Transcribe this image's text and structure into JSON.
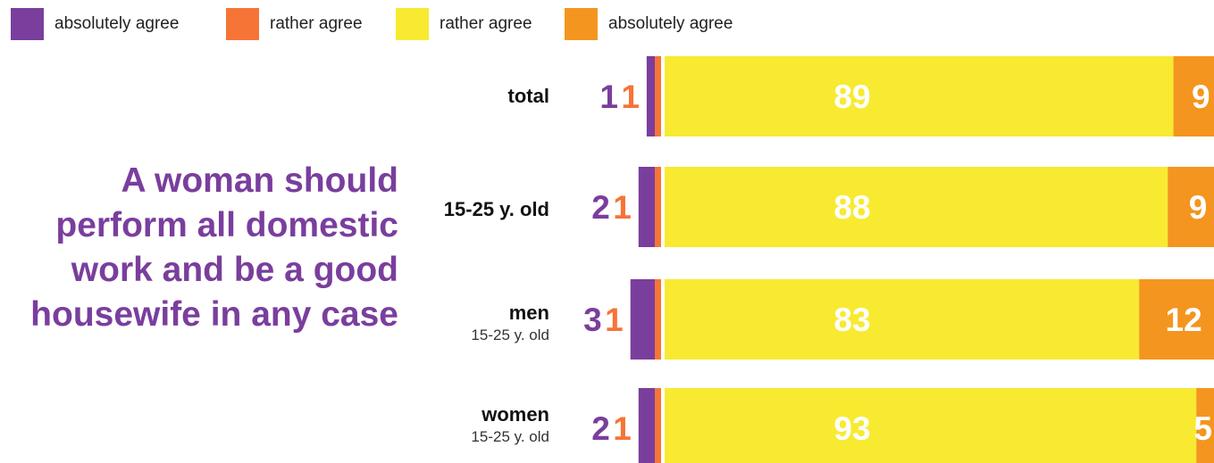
{
  "colors": {
    "absolutely_agree_purple": "#7a3e9d",
    "rather_agree_red": "#f77437",
    "rather_agree_yellow": "#f8ea31",
    "absolutely_agree_orange": "#f4951f",
    "headline": "#7a3e9d",
    "value_text": "#ffffff"
  },
  "legend": [
    {
      "label": "absolutely agree",
      "color": "#7a3e9d"
    },
    {
      "label": "rather agree",
      "color": "#f77437"
    },
    {
      "label": "rather agree",
      "color": "#f8ea31"
    },
    {
      "label": "absolutely agree",
      "color": "#f4951f"
    }
  ],
  "headline": "A woman should perform all domestic work and be a good housewife in any case",
  "rows": [
    {
      "name": "total",
      "sub": ""
    },
    {
      "name": "15-25 y. old",
      "sub": ""
    },
    {
      "name": "men",
      "sub": "15-25 y. old"
    },
    {
      "name": "women",
      "sub": "15-25 y. old"
    }
  ],
  "chart_data": {
    "type": "bar",
    "orientation": "horizontal",
    "stacked": true,
    "categories": [
      "total",
      "15-25 y. old",
      "men 15-25 y. old",
      "women 15-25 y. old"
    ],
    "series": [
      {
        "name": "absolutely agree",
        "color": "#7a3e9d",
        "values": [
          1,
          2,
          3,
          2
        ]
      },
      {
        "name": "rather agree",
        "color": "#f77437",
        "values": [
          1,
          1,
          1,
          1
        ]
      },
      {
        "name": "rather agree",
        "color": "#f8ea31",
        "values": [
          89,
          88,
          83,
          93
        ]
      },
      {
        "name": "absolutely agree",
        "color": "#f4951f",
        "values": [
          9,
          9,
          12,
          5
        ]
      }
    ],
    "legend_position": "top-left",
    "grid": false
  }
}
